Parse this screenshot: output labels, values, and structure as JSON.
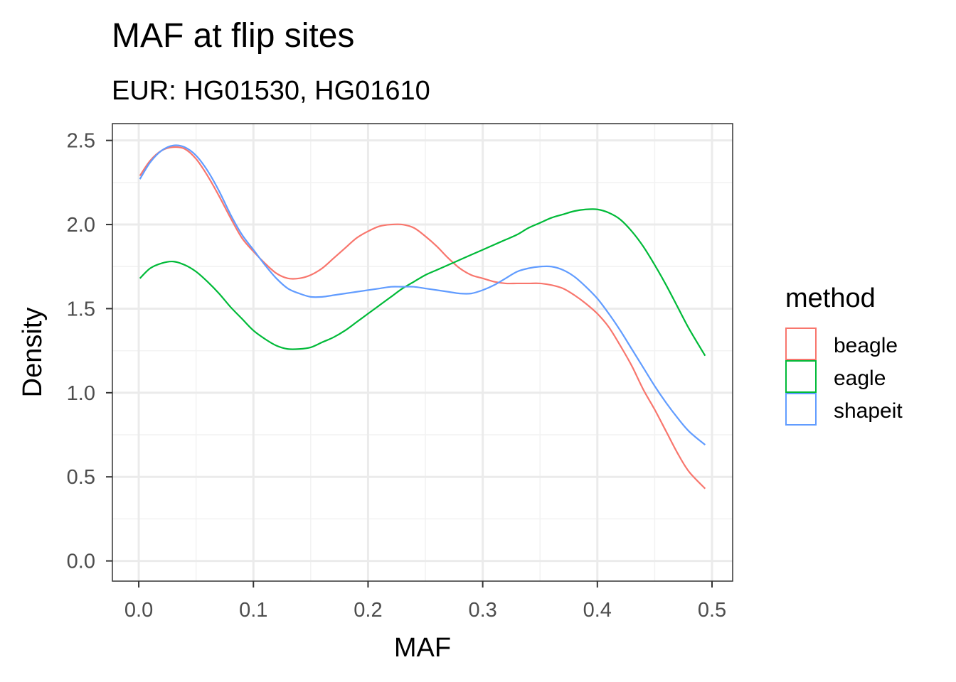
{
  "chart_data": {
    "type": "line",
    "title": "MAF at flip sites",
    "subtitle": "EUR: HG01530, HG01610",
    "xlabel": "MAF",
    "ylabel": "Density",
    "xlim": [
      -0.023,
      0.518
    ],
    "ylim": [
      -0.12,
      2.6
    ],
    "xticks": [
      0.0,
      0.1,
      0.2,
      0.3,
      0.4,
      0.5
    ],
    "xtick_labels": [
      "0.0",
      "0.1",
      "0.2",
      "0.3",
      "0.4",
      "0.5"
    ],
    "yticks": [
      0.0,
      0.5,
      1.0,
      1.5,
      2.0,
      2.5
    ],
    "ytick_labels": [
      "0.0",
      "0.5",
      "1.0",
      "1.5",
      "2.0",
      "2.5"
    ],
    "grid": true,
    "legend_title": "method",
    "legend_position": "right",
    "series": [
      {
        "name": "beagle",
        "color": "#F8766D",
        "x": [
          0.001,
          0.01,
          0.02,
          0.03,
          0.04,
          0.05,
          0.06,
          0.07,
          0.08,
          0.09,
          0.1,
          0.11,
          0.12,
          0.13,
          0.14,
          0.15,
          0.16,
          0.17,
          0.18,
          0.19,
          0.2,
          0.21,
          0.22,
          0.23,
          0.24,
          0.25,
          0.26,
          0.27,
          0.28,
          0.29,
          0.3,
          0.31,
          0.32,
          0.33,
          0.34,
          0.35,
          0.36,
          0.37,
          0.38,
          0.39,
          0.4,
          0.41,
          0.42,
          0.43,
          0.44,
          0.45,
          0.46,
          0.47,
          0.48,
          0.494
        ],
        "y": [
          2.29,
          2.38,
          2.44,
          2.46,
          2.45,
          2.39,
          2.29,
          2.17,
          2.04,
          1.92,
          1.84,
          1.77,
          1.71,
          1.68,
          1.68,
          1.7,
          1.74,
          1.8,
          1.86,
          1.92,
          1.96,
          1.99,
          2.0,
          2.0,
          1.98,
          1.93,
          1.87,
          1.8,
          1.74,
          1.7,
          1.68,
          1.66,
          1.65,
          1.65,
          1.65,
          1.65,
          1.64,
          1.62,
          1.58,
          1.53,
          1.47,
          1.39,
          1.28,
          1.16,
          1.02,
          0.9,
          0.77,
          0.64,
          0.53,
          0.43
        ]
      },
      {
        "name": "eagle",
        "color": "#00BA38",
        "x": [
          0.001,
          0.01,
          0.02,
          0.03,
          0.04,
          0.05,
          0.06,
          0.07,
          0.08,
          0.09,
          0.1,
          0.11,
          0.12,
          0.13,
          0.14,
          0.15,
          0.16,
          0.17,
          0.18,
          0.19,
          0.2,
          0.21,
          0.22,
          0.23,
          0.24,
          0.25,
          0.26,
          0.27,
          0.28,
          0.29,
          0.3,
          0.31,
          0.32,
          0.33,
          0.34,
          0.35,
          0.36,
          0.37,
          0.38,
          0.39,
          0.4,
          0.41,
          0.42,
          0.43,
          0.44,
          0.45,
          0.46,
          0.47,
          0.48,
          0.494
        ],
        "y": [
          1.68,
          1.74,
          1.77,
          1.78,
          1.76,
          1.72,
          1.66,
          1.59,
          1.51,
          1.44,
          1.37,
          1.32,
          1.28,
          1.26,
          1.26,
          1.27,
          1.3,
          1.33,
          1.37,
          1.42,
          1.47,
          1.52,
          1.57,
          1.62,
          1.66,
          1.7,
          1.73,
          1.76,
          1.79,
          1.82,
          1.85,
          1.88,
          1.91,
          1.94,
          1.98,
          2.01,
          2.04,
          2.06,
          2.08,
          2.09,
          2.09,
          2.07,
          2.03,
          1.96,
          1.87,
          1.76,
          1.64,
          1.51,
          1.38,
          1.22
        ]
      },
      {
        "name": "shapeit",
        "color": "#619CFF",
        "x": [
          0.001,
          0.01,
          0.02,
          0.03,
          0.04,
          0.05,
          0.06,
          0.07,
          0.08,
          0.09,
          0.1,
          0.11,
          0.12,
          0.13,
          0.14,
          0.15,
          0.16,
          0.17,
          0.18,
          0.19,
          0.2,
          0.21,
          0.22,
          0.23,
          0.24,
          0.25,
          0.26,
          0.27,
          0.28,
          0.29,
          0.3,
          0.31,
          0.32,
          0.33,
          0.34,
          0.35,
          0.36,
          0.37,
          0.38,
          0.39,
          0.4,
          0.41,
          0.42,
          0.43,
          0.44,
          0.45,
          0.46,
          0.47,
          0.48,
          0.494
        ],
        "y": [
          2.27,
          2.37,
          2.44,
          2.47,
          2.46,
          2.41,
          2.32,
          2.2,
          2.06,
          1.94,
          1.85,
          1.76,
          1.68,
          1.62,
          1.59,
          1.57,
          1.57,
          1.58,
          1.59,
          1.6,
          1.61,
          1.62,
          1.63,
          1.63,
          1.63,
          1.62,
          1.61,
          1.6,
          1.59,
          1.59,
          1.61,
          1.64,
          1.68,
          1.72,
          1.74,
          1.75,
          1.75,
          1.73,
          1.69,
          1.63,
          1.56,
          1.47,
          1.37,
          1.26,
          1.15,
          1.04,
          0.94,
          0.85,
          0.77,
          0.69
        ]
      }
    ]
  }
}
